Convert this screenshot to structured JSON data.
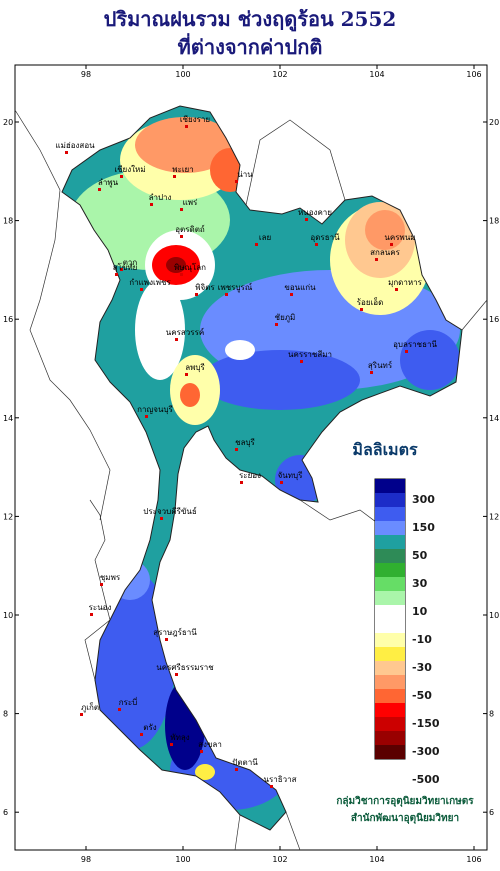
{
  "title": [
    "ปริมาณฝนรวม ช่วงฤดูร้อน 2552",
    "ที่ต่างจากค่าปกติ"
  ],
  "axis": {
    "lon_ticks": [
      98,
      100,
      102,
      104,
      106
    ],
    "lat_ticks": [
      6,
      8,
      10,
      12,
      14,
      16,
      18,
      20
    ]
  },
  "legend": {
    "unit": "มิลลิเมตร",
    "colors": [
      "#00008b",
      "#1c2cc8",
      "#3e5cf0",
      "#6a8cff",
      "#1fa0a0",
      "#2e8b57",
      "#30b030",
      "#66dd66",
      "#aaf5aa",
      "#ffffff",
      "#ffffff",
      "#ffffaa",
      "#ffee44",
      "#ffc890",
      "#ff9966",
      "#ff6633",
      "#ff0000",
      "#cc0000",
      "#990000",
      "#5a0000"
    ],
    "labels": [
      300,
      150,
      50,
      30,
      10,
      -10,
      -30,
      -50,
      -150,
      -300,
      -500
    ]
  },
  "places": [
    "เชียงราย",
    "แม่ฮ่องสอน",
    "เชียงใหม่",
    "ลำพูน",
    "พะเยา",
    "น่าน",
    "แพร่",
    "ลำปาง",
    "อุตรดิตถ์",
    "ตาก",
    "พิษณุโลก",
    "สุโขทัย",
    "กำแพงเพชร",
    "พิจิตร",
    "เพชรบูรณ์",
    "หนองคาย",
    "อุดรธานี",
    "นครพนม",
    "สกลนคร",
    "มุกดาหาร",
    "เลย",
    "ขอนแก่น",
    "ชัยภูมิ",
    "ร้อยเอ็ด",
    "อุบลราชธานี",
    "นครราชสีมา",
    "สุรินทร์",
    "นครสวรรค์",
    "ลพบุรี",
    "กาญจนบุรี",
    "ชลบุรี",
    "ระยอง",
    "จันทบุรี",
    "ประจวบคีรีขันธ์",
    "ชุมพร",
    "ระนอง",
    "สุราษฎร์ธานี",
    "นครศรีธรรมราช",
    "ภูเก็ต",
    "กระบี่",
    "ตรัง",
    "สงขลา",
    "ปัตตานี",
    "นราธิวาส",
    "พัทลุง"
  ],
  "credits": [
    "กลุ่มวิชาการอุตุนิยมวิทยาเกษตร",
    "สำนักพัฒนาอุตุนิยมวิทยา"
  ]
}
